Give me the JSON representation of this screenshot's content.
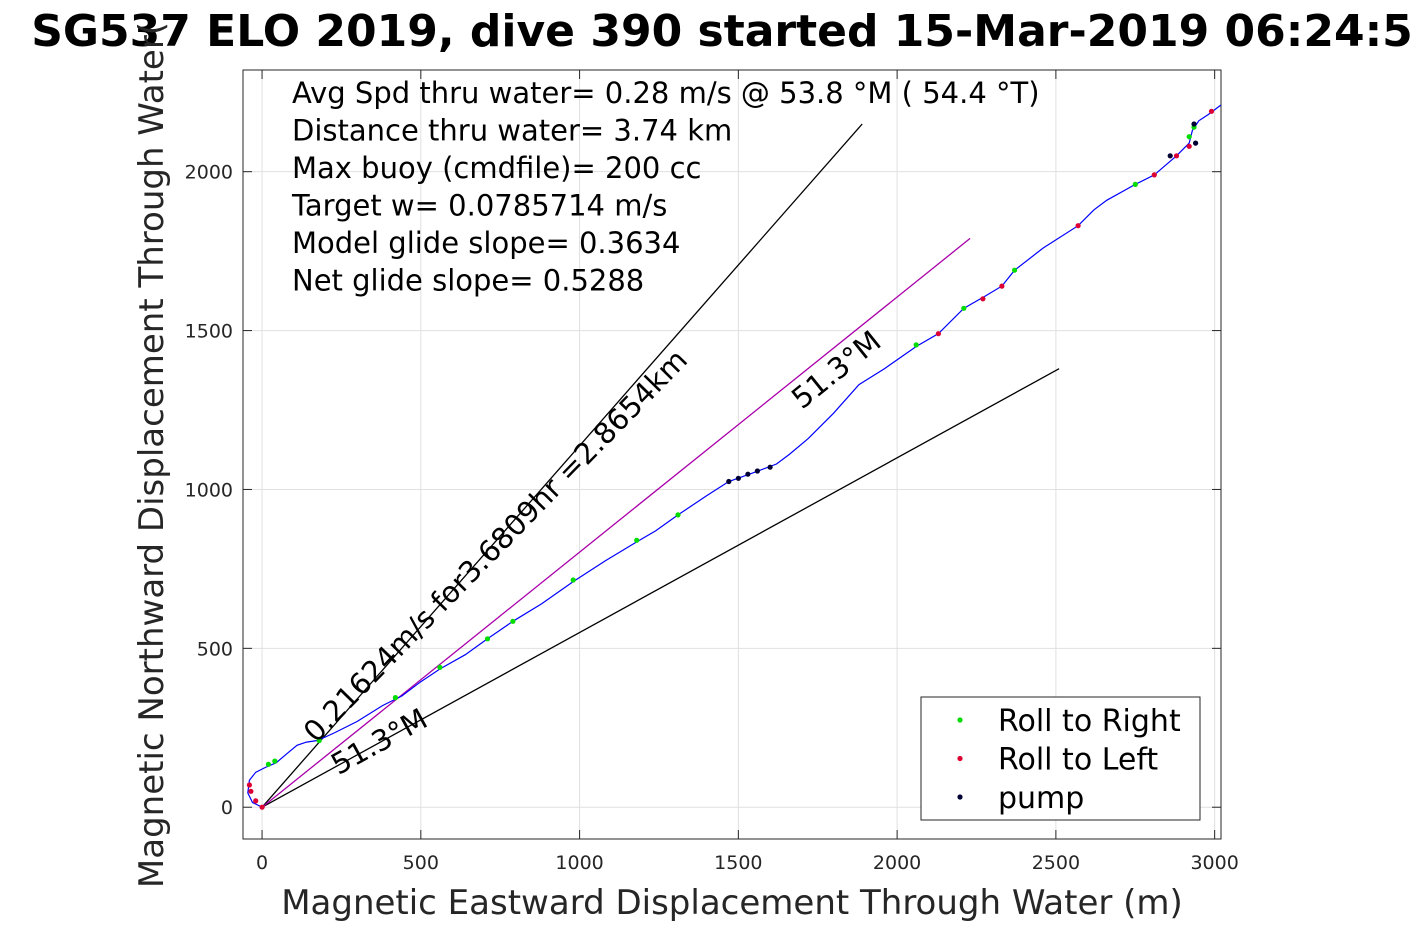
{
  "chart_data": {
    "type": "line",
    "title": "SG537 ELO 2019, dive 390 started 15-Mar-2019 06:24:5",
    "xlabel": "Magnetic Eastward Displacement Through Water (m)",
    "ylabel": "Magnetic Northward Displacement Through Water(",
    "xlim": [
      -60,
      3020
    ],
    "ylim": [
      -100,
      2320
    ],
    "x_ticks": [
      0,
      500,
      1000,
      1500,
      2000,
      2500,
      3000
    ],
    "y_ticks": [
      0,
      500,
      1000,
      1500,
      2000
    ],
    "grid": true,
    "legend_position": "bottom-right",
    "info_lines": [
      "Avg Spd thru water=  0.28 m/s @  53.8 °M ( 54.4 °T)",
      "Distance thru water=  3.74 km",
      "Max buoy (cmdfile)= 200 cc",
      "Target w= 0.0785714 m/s",
      "Model glide slope= 0.3634",
      "Net glide slope= 0.5288"
    ],
    "annotations": [
      {
        "text": "0.21624m/s for3.6809hr =2.8654km",
        "x": 170,
        "y": 200
      },
      {
        "text": "51.3°M",
        "x": 240,
        "y": 100
      },
      {
        "text": "51.3°M",
        "x": 1700,
        "y": 1250
      }
    ],
    "reference_lines": [
      {
        "name": "upper-bound",
        "color": "#000000",
        "points": [
          [
            0,
            0
          ],
          [
            1890,
            2150
          ]
        ]
      },
      {
        "name": "lower-bound",
        "color": "#000000",
        "points": [
          [
            0,
            0
          ],
          [
            2510,
            1380
          ]
        ]
      },
      {
        "name": "net-track",
        "color": "#aa00aa",
        "points": [
          [
            0,
            0
          ],
          [
            2230,
            1790
          ]
        ]
      }
    ],
    "track": {
      "color": "#0000ff",
      "points": [
        [
          0,
          0
        ],
        [
          -30,
          15
        ],
        [
          -45,
          45
        ],
        [
          -40,
          85
        ],
        [
          -20,
          110
        ],
        [
          10,
          125
        ],
        [
          45,
          140
        ],
        [
          80,
          170
        ],
        [
          110,
          195
        ],
        [
          140,
          205
        ],
        [
          175,
          210
        ],
        [
          230,
          235
        ],
        [
          300,
          270
        ],
        [
          380,
          320
        ],
        [
          440,
          350
        ],
        [
          500,
          395
        ],
        [
          560,
          435
        ],
        [
          640,
          480
        ],
        [
          710,
          530
        ],
        [
          790,
          585
        ],
        [
          880,
          640
        ],
        [
          980,
          710
        ],
        [
          1080,
          775
        ],
        [
          1180,
          835
        ],
        [
          1240,
          870
        ],
        [
          1310,
          920
        ],
        [
          1400,
          980
        ],
        [
          1470,
          1025
        ],
        [
          1540,
          1050
        ],
        [
          1620,
          1080
        ],
        [
          1660,
          1110
        ],
        [
          1720,
          1160
        ],
        [
          1800,
          1240
        ],
        [
          1880,
          1330
        ],
        [
          1960,
          1380
        ],
        [
          2060,
          1450
        ],
        [
          2130,
          1490
        ],
        [
          2210,
          1570
        ],
        [
          2280,
          1610
        ],
        [
          2330,
          1640
        ],
        [
          2370,
          1690
        ],
        [
          2460,
          1760
        ],
        [
          2570,
          1830
        ],
        [
          2620,
          1880
        ],
        [
          2660,
          1910
        ],
        [
          2750,
          1960
        ],
        [
          2810,
          1990
        ],
        [
          2880,
          2050
        ],
        [
          2920,
          2090
        ],
        [
          2930,
          2130
        ],
        [
          2950,
          2160
        ],
        [
          2980,
          2180
        ],
        [
          3020,
          2210
        ]
      ]
    },
    "series": [
      {
        "name": "Roll to Right",
        "color": "#00dd00",
        "points": [
          [
            20,
            135
          ],
          [
            40,
            145
          ],
          [
            180,
            210
          ],
          [
            420,
            345
          ],
          [
            560,
            440
          ],
          [
            710,
            530
          ],
          [
            790,
            585
          ],
          [
            980,
            715
          ],
          [
            1180,
            840
          ],
          [
            1310,
            920
          ],
          [
            2060,
            1455
          ],
          [
            2210,
            1570
          ],
          [
            2370,
            1690
          ],
          [
            2750,
            1960
          ],
          [
            2920,
            2110
          ],
          [
            2935,
            2140
          ]
        ]
      },
      {
        "name": "Roll to Left",
        "color": "#dd0033",
        "points": [
          [
            -40,
            70
          ],
          [
            -35,
            50
          ],
          [
            -20,
            20
          ],
          [
            0,
            0
          ],
          [
            2130,
            1490
          ],
          [
            2270,
            1600
          ],
          [
            2330,
            1640
          ],
          [
            2570,
            1830
          ],
          [
            2810,
            1990
          ],
          [
            2880,
            2050
          ],
          [
            2920,
            2080
          ],
          [
            2990,
            2190
          ]
        ]
      },
      {
        "name": "pump",
        "color": "#000033",
        "points": [
          [
            1470,
            1025
          ],
          [
            1500,
            1035
          ],
          [
            1530,
            1048
          ],
          [
            1560,
            1058
          ],
          [
            1600,
            1070
          ],
          [
            2860,
            2050
          ],
          [
            2940,
            2090
          ],
          [
            2935,
            2150
          ]
        ]
      }
    ]
  }
}
